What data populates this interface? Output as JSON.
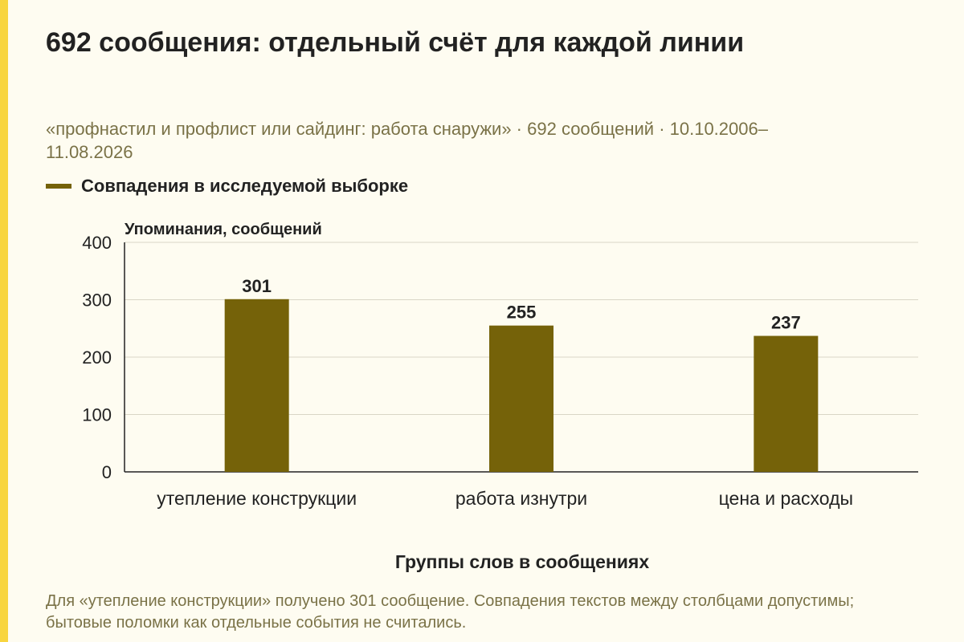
{
  "title": "692 сообщения: отдельный счёт для каждой линии",
  "subtitle": "«профнастил и профлист или сайдинг: работа снаружи» · 692 сообщений · 10.10.2006–11.08.2026",
  "footnote": "Для «утепление конструкции» получено 301 сообщение. Совпадения текстов между столбцами допустимы; бытовые поломки как отдельные события не считались.",
  "colors": {
    "bar": "#756209",
    "accent": "#f8d53f",
    "background": "#fefcf1",
    "muted_text": "#7a7247"
  },
  "chart_data": {
    "type": "bar",
    "categories": [
      "утепление конструкции",
      "работа изнутри",
      "цена и расходы"
    ],
    "series": [
      {
        "name": "Совпадения в исследуемой выборке",
        "values": [
          301,
          255,
          237
        ]
      }
    ],
    "xlabel": "Группы слов в сообщениях",
    "ylabel": "Упоминания, сообщений",
    "ylim": [
      0,
      400
    ],
    "yticks": [
      0,
      100,
      200,
      300,
      400
    ],
    "grid": true,
    "legend_position": "top-left"
  }
}
